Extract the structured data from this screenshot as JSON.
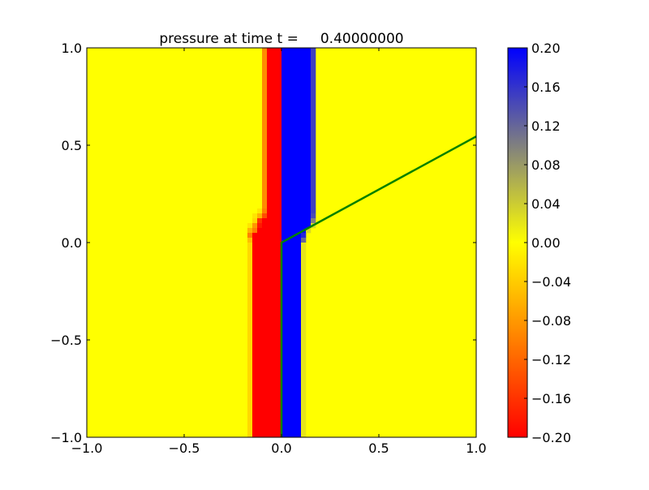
{
  "chart_data": {
    "type": "heatmap",
    "title": "pressure at time t =     0.40000000",
    "xlim": [
      -1.0,
      1.0
    ],
    "ylim": [
      -1.0,
      1.0
    ],
    "xticks": [
      "−1.0",
      "−0.5",
      "0.0",
      "0.5",
      "1.0"
    ],
    "xtick_values": [
      -1.0,
      -0.5,
      0.0,
      0.5,
      1.0
    ],
    "yticks": [
      "−1.0",
      "−0.5",
      "0.0",
      "0.5",
      "1.0"
    ],
    "ytick_values": [
      -1.0,
      -0.5,
      0.0,
      0.5,
      1.0
    ],
    "grid": false,
    "background_value": 0.0,
    "colormap": {
      "vmin": -0.2,
      "vmax": 0.2,
      "stops": [
        {
          "value": -0.2,
          "color": "#ff0000"
        },
        {
          "value": 0.0,
          "color": "#ffff00"
        },
        {
          "value": 0.2,
          "color": "#0000ff"
        }
      ]
    },
    "colorbar": {
      "placement": "right",
      "tick_values": [
        -0.2,
        -0.16,
        -0.12,
        -0.08,
        -0.04,
        0.0,
        0.04,
        0.08,
        0.12,
        0.16,
        0.2
      ],
      "tick_labels": [
        "−0.20",
        "−0.16",
        "−0.12",
        "−0.08",
        "−0.04",
        "0.00",
        "0.04",
        "0.08",
        "0.12",
        "0.16",
        "0.20"
      ]
    },
    "cells": [
      {
        "x": [
          -0.1,
          -0.075
        ],
        "y": [
          0.175,
          1.0
        ],
        "value": -0.09
      },
      {
        "x": [
          -0.075,
          0.0
        ],
        "y": [
          0.175,
          1.0
        ],
        "value": -0.2
      },
      {
        "x": [
          0.0,
          0.15
        ],
        "y": [
          0.175,
          1.0
        ],
        "value": 0.2
      },
      {
        "x": [
          0.15,
          0.175
        ],
        "y": [
          0.175,
          1.0
        ],
        "value": 0.15
      },
      {
        "x": [
          -0.125,
          -0.1
        ],
        "y": [
          0.15,
          0.175
        ],
        "value": -0.02
      },
      {
        "x": [
          -0.1,
          -0.075
        ],
        "y": [
          0.15,
          0.175
        ],
        "value": -0.1
      },
      {
        "x": [
          -0.075,
          0.0
        ],
        "y": [
          0.15,
          0.175
        ],
        "value": -0.2
      },
      {
        "x": [
          0.0,
          0.15
        ],
        "y": [
          0.15,
          0.175
        ],
        "value": 0.2
      },
      {
        "x": [
          0.15,
          0.175
        ],
        "y": [
          0.15,
          0.175
        ],
        "value": 0.15
      },
      {
        "x": [
          -0.15,
          -0.125
        ],
        "y": [
          0.125,
          0.15
        ],
        "value": -0.02
      },
      {
        "x": [
          -0.125,
          -0.1
        ],
        "y": [
          0.125,
          0.15
        ],
        "value": -0.06
      },
      {
        "x": [
          -0.1,
          -0.075
        ],
        "y": [
          0.125,
          0.15
        ],
        "value": -0.14
      },
      {
        "x": [
          -0.075,
          0.0
        ],
        "y": [
          0.125,
          0.15
        ],
        "value": -0.2
      },
      {
        "x": [
          0.0,
          0.15
        ],
        "y": [
          0.125,
          0.15
        ],
        "value": 0.2
      },
      {
        "x": [
          0.15,
          0.175
        ],
        "y": [
          0.125,
          0.15
        ],
        "value": 0.14
      },
      {
        "x": [
          -0.15,
          -0.125
        ],
        "y": [
          0.1,
          0.125
        ],
        "value": -0.03
      },
      {
        "x": [
          -0.125,
          -0.1
        ],
        "y": [
          0.1,
          0.125
        ],
        "value": -0.16
      },
      {
        "x": [
          -0.1,
          0.0
        ],
        "y": [
          0.1,
          0.125
        ],
        "value": -0.2
      },
      {
        "x": [
          0.0,
          0.15
        ],
        "y": [
          0.1,
          0.125
        ],
        "value": 0.2
      },
      {
        "x": [
          0.15,
          0.175
        ],
        "y": [
          0.1,
          0.125
        ],
        "value": 0.1
      },
      {
        "x": [
          -0.175,
          -0.15
        ],
        "y": [
          0.075,
          0.1
        ],
        "value": -0.02
      },
      {
        "x": [
          -0.15,
          -0.125
        ],
        "y": [
          0.075,
          0.1
        ],
        "value": -0.08
      },
      {
        "x": [
          -0.125,
          -0.1
        ],
        "y": [
          0.075,
          0.1
        ],
        "value": -0.18
      },
      {
        "x": [
          -0.1,
          0.0
        ],
        "y": [
          0.075,
          0.1
        ],
        "value": -0.2
      },
      {
        "x": [
          0.0,
          0.15
        ],
        "y": [
          0.075,
          0.1
        ],
        "value": 0.2
      },
      {
        "x": [
          0.15,
          0.175
        ],
        "y": [
          0.075,
          0.1
        ],
        "value": 0.03
      },
      {
        "x": [
          -0.175,
          -0.15
        ],
        "y": [
          0.05,
          0.075
        ],
        "value": -0.06
      },
      {
        "x": [
          -0.15,
          -0.125
        ],
        "y": [
          0.05,
          0.075
        ],
        "value": -0.1
      },
      {
        "x": [
          -0.125,
          0.0
        ],
        "y": [
          0.05,
          0.075
        ],
        "value": -0.2
      },
      {
        "x": [
          0.0,
          0.125
        ],
        "y": [
          0.05,
          0.075
        ],
        "value": 0.2
      },
      {
        "x": [
          0.125,
          0.15
        ],
        "y": [
          0.05,
          0.075
        ],
        "value": 0.03
      },
      {
        "x": [
          -0.175,
          -0.15
        ],
        "y": [
          0.025,
          0.05
        ],
        "value": -0.1
      },
      {
        "x": [
          -0.15,
          0.0
        ],
        "y": [
          0.025,
          0.05
        ],
        "value": -0.2
      },
      {
        "x": [
          0.0,
          0.1
        ],
        "y": [
          0.025,
          0.05
        ],
        "value": 0.2
      },
      {
        "x": [
          0.1,
          0.125
        ],
        "y": [
          0.025,
          0.05
        ],
        "value": 0.17
      },
      {
        "x": [
          -0.175,
          -0.15
        ],
        "y": [
          0.0,
          0.025
        ],
        "value": -0.05
      },
      {
        "x": [
          -0.15,
          0.0
        ],
        "y": [
          0.0,
          0.025
        ],
        "value": -0.2
      },
      {
        "x": [
          0.0,
          0.1
        ],
        "y": [
          0.0,
          0.025
        ],
        "value": 0.2
      },
      {
        "x": [
          0.1,
          0.125
        ],
        "y": [
          0.0,
          0.025
        ],
        "value": 0.12
      },
      {
        "x": [
          -0.175,
          -0.15
        ],
        "y": [
          -1.0,
          0.0
        ],
        "value": -0.03
      },
      {
        "x": [
          -0.15,
          0.0
        ],
        "y": [
          -1.0,
          0.0
        ],
        "value": -0.2
      },
      {
        "x": [
          0.0,
          0.1
        ],
        "y": [
          -1.0,
          0.0
        ],
        "value": 0.2
      },
      {
        "x": [
          0.1,
          0.125
        ],
        "y": [
          -1.0,
          0.0
        ],
        "value": 0.02
      }
    ],
    "overlay_line": {
      "color": "#008000",
      "points": [
        [
          0.0,
          -1.0
        ],
        [
          0.0,
          0.0
        ],
        [
          1.0,
          0.545
        ]
      ]
    }
  }
}
